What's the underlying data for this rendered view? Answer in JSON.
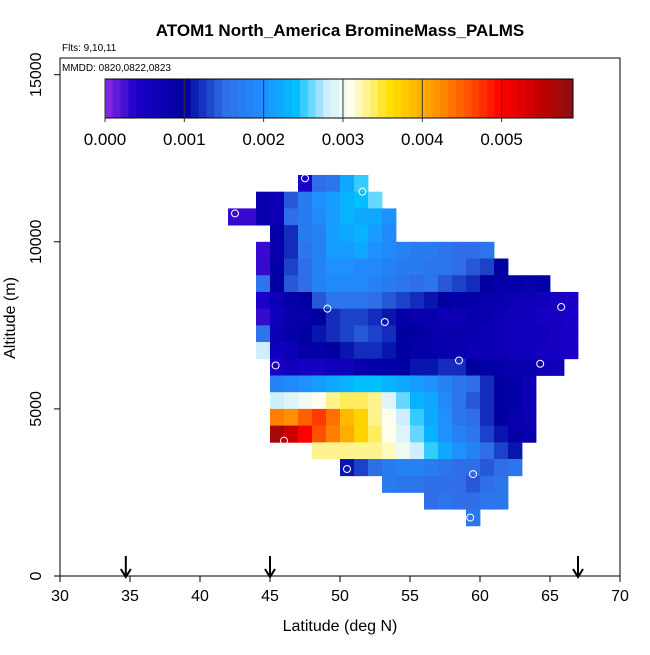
{
  "chart_data": {
    "type": "heatmap",
    "title": "ATOM1 North_America BromineMass_PALMS",
    "annotations": [
      "Flts: 9,10,11",
      "MMDD: 0820,0822,0823"
    ],
    "xlabel": "Latitude (deg N)",
    "ylabel": "Altitude (m)",
    "xlim": [
      30,
      70
    ],
    "ylim": [
      0,
      15500
    ],
    "x_ticks": [
      30,
      35,
      40,
      45,
      50,
      55,
      60,
      65,
      70
    ],
    "y_ticks": [
      0,
      5000,
      10000,
      15000
    ],
    "grid": false,
    "colorbar": {
      "placement": "top-inside",
      "range": [
        0,
        0.0059
      ],
      "ticks": [
        0.0,
        0.001,
        0.002,
        0.003,
        0.004,
        0.005
      ],
      "tick_labels": [
        "0.000",
        "0.001",
        "0.002",
        "0.003",
        "0.004",
        "0.005"
      ],
      "stops": [
        {
          "v": 0.0,
          "c": "#8a2be2"
        },
        {
          "v": 0.0004,
          "c": "#1a00c8"
        },
        {
          "v": 0.001,
          "c": "#0000a0"
        },
        {
          "v": 0.0015,
          "c": "#2f6ee6"
        },
        {
          "v": 0.002,
          "c": "#1e90ff"
        },
        {
          "v": 0.0024,
          "c": "#00bfff"
        },
        {
          "v": 0.0028,
          "c": "#cfefff"
        },
        {
          "v": 0.0031,
          "c": "#ffffee"
        },
        {
          "v": 0.0036,
          "c": "#ffe000"
        },
        {
          "v": 0.0041,
          "c": "#ffa000"
        },
        {
          "v": 0.0046,
          "c": "#ff5000"
        },
        {
          "v": 0.005,
          "c": "#ff0000"
        },
        {
          "v": 0.0055,
          "c": "#c00000"
        },
        {
          "v": 0.0059,
          "c": "#8b1010"
        }
      ]
    },
    "cell_size": {
      "lat": 1,
      "alt": 500
    },
    "cells": [
      {
        "lat_start": 47,
        "alt_start": 11500,
        "values": [
          0.0004,
          0.0015,
          0.0016,
          0.0022,
          0.0025
        ]
      },
      {
        "lat_start": 44,
        "alt_start": 11000,
        "values": [
          0.0008,
          0.0007,
          0.0014,
          0.0017,
          0.002,
          0.0021,
          0.0023,
          0.0024,
          0.0026
        ]
      },
      {
        "lat_start": 42,
        "alt_start": 10500,
        "values": [
          0.0003,
          0.0003,
          0.0008,
          0.0007,
          0.0015,
          0.0017,
          0.0019,
          0.0021,
          0.0023,
          0.0022,
          0.0022,
          0.002
        ]
      },
      {
        "lat_start": 45,
        "alt_start": 10000,
        "values": [
          0.0009,
          0.0012,
          0.0017,
          0.0018,
          0.0021,
          0.0022,
          0.0023,
          0.0021,
          0.0019
        ]
      },
      {
        "lat_start": 44,
        "alt_start": 9500,
        "values": [
          0.0003,
          0.0008,
          0.0012,
          0.0016,
          0.0018,
          0.0021,
          0.0021,
          0.0022,
          0.002,
          0.0019,
          0.0018,
          0.0017,
          0.0017,
          0.0016,
          0.0015,
          0.0015,
          0.0016
        ]
      },
      {
        "lat_start": 44,
        "alt_start": 9000,
        "values": [
          0.0003,
          0.0009,
          0.0013,
          0.0015,
          0.0018,
          0.002,
          0.002,
          0.0019,
          0.0019,
          0.0018,
          0.0017,
          0.0017,
          0.0016,
          0.0016,
          0.0015,
          0.0014,
          0.0013,
          0.001
        ]
      },
      {
        "lat_start": 44,
        "alt_start": 8500,
        "values": [
          0.0016,
          0.001,
          0.0014,
          0.0015,
          0.0018,
          0.0019,
          0.0019,
          0.0019,
          0.0018,
          0.0017,
          0.0016,
          0.0015,
          0.0016,
          0.0014,
          0.0013,
          0.0012,
          0.001,
          0.0009,
          0.0009,
          0.0008,
          0.0009
        ]
      },
      {
        "lat_start": 44,
        "alt_start": 8000,
        "values": [
          0.0004,
          0.0007,
          0.0009,
          0.001,
          0.0014,
          0.0016,
          0.0016,
          0.0016,
          0.0015,
          0.0014,
          0.0013,
          0.0012,
          0.0011,
          0.001,
          0.0009,
          0.0009,
          0.0008,
          0.0008,
          0.0007,
          0.0007,
          0.0006,
          0.0005,
          0.0004
        ]
      },
      {
        "lat_start": 44,
        "alt_start": 7500,
        "values": [
          0.0003,
          0.0006,
          0.0008,
          0.0009,
          0.001,
          0.0012,
          0.0013,
          0.0013,
          0.0012,
          0.0011,
          0.0009,
          0.0008,
          0.0008,
          0.0007,
          0.0007,
          0.0008,
          0.0008,
          0.0007,
          0.0006,
          0.0006,
          0.0005,
          0.0005,
          0.0004
        ]
      },
      {
        "lat_start": 44,
        "alt_start": 7000,
        "values": [
          0.0016,
          0.0007,
          0.0009,
          0.001,
          0.0011,
          0.0012,
          0.0013,
          0.0014,
          0.0013,
          0.0012,
          0.001,
          0.001,
          0.0009,
          0.0008,
          0.0008,
          0.0008,
          0.0007,
          0.0007,
          0.0006,
          0.0006,
          0.0006,
          0.0005,
          0.0004
        ]
      },
      {
        "lat_start": 44,
        "alt_start": 6500,
        "values": [
          0.0028,
          0.0006,
          0.0007,
          0.0009,
          0.0009,
          0.001,
          0.0011,
          0.0012,
          0.0012,
          0.0011,
          0.001,
          0.0009,
          0.0009,
          0.0008,
          0.0008,
          0.0007,
          0.0007,
          0.0007,
          0.0006,
          0.0006,
          0.0005,
          0.0005,
          0.0004
        ]
      },
      {
        "lat_start": 45,
        "alt_start": 6000,
        "values": [
          0.0004,
          0.0006,
          0.0005,
          0.0005,
          0.0006,
          0.0006,
          0.0008,
          0.0009,
          0.0009,
          0.001,
          0.0011,
          0.0011,
          0.0012,
          0.0012,
          0.001,
          0.0009,
          0.0009,
          0.0008,
          0.0008,
          0.0007,
          0.0006
        ]
      },
      {
        "lat_start": 45,
        "alt_start": 5500,
        "values": [
          0.0018,
          0.0019,
          0.002,
          0.0021,
          0.0022,
          0.0023,
          0.0024,
          0.0024,
          0.0023,
          0.0022,
          0.0021,
          0.002,
          0.0018,
          0.0016,
          0.0015,
          0.0012,
          0.001,
          0.0009,
          0.0007
        ]
      },
      {
        "lat_start": 45,
        "alt_start": 5000,
        "values": [
          0.0028,
          0.0029,
          0.003,
          0.0031,
          0.0033,
          0.0034,
          0.0034,
          0.0033,
          0.0029,
          0.0026,
          0.0023,
          0.0022,
          0.0019,
          0.0016,
          0.0014,
          0.0012,
          0.001,
          0.0009,
          0.0007
        ]
      },
      {
        "lat_start": 45,
        "alt_start": 4500,
        "values": [
          0.0043,
          0.0042,
          0.0045,
          0.0047,
          0.0044,
          0.0039,
          0.0037,
          0.0033,
          0.0031,
          0.0028,
          0.0025,
          0.0022,
          0.002,
          0.0016,
          0.0015,
          0.0012,
          0.001,
          0.0008,
          0.0007
        ]
      },
      {
        "lat_start": 45,
        "alt_start": 4000,
        "values": [
          0.0057,
          0.0054,
          0.005,
          0.0046,
          0.0043,
          0.004,
          0.0037,
          0.0034,
          0.0031,
          0.0029,
          0.0026,
          0.0023,
          0.002,
          0.0018,
          0.0016,
          0.0013,
          0.0011,
          0.0009,
          0.0008
        ]
      },
      {
        "lat_start": 48,
        "alt_start": 3500,
        "values": [
          0.0033,
          0.0033,
          0.0033,
          0.0033,
          0.0033,
          0.0032,
          0.003,
          0.0028,
          0.0025,
          0.0022,
          0.002,
          0.0018,
          0.0015,
          0.0013,
          0.0011
        ]
      },
      {
        "lat_start": 50,
        "alt_start": 3000,
        "values": [
          0.0011,
          0.0013,
          0.0015,
          0.0017,
          0.0018,
          0.0018,
          0.0017,
          0.0016,
          0.0015,
          0.0015,
          0.0014,
          0.0015,
          0.0016
        ]
      },
      {
        "lat_start": 53,
        "alt_start": 2500,
        "values": [
          0.0017,
          0.0016,
          0.0016,
          0.0015,
          0.0015,
          0.0015,
          0.0014,
          0.0015,
          0.0016
        ]
      },
      {
        "lat_start": 56,
        "alt_start": 2000,
        "values": [
          0.0015,
          0.0016,
          0.0015,
          0.0015,
          0.0016,
          0.0016
        ]
      },
      {
        "lat_start": 59,
        "alt_start": 1500,
        "values": [
          0.0016
        ]
      }
    ],
    "flight_markers": [
      {
        "lat": 47.5,
        "alt": 11900
      },
      {
        "lat": 51.6,
        "alt": 11500
      },
      {
        "lat": 42.5,
        "alt": 10850
      },
      {
        "lat": 49.1,
        "alt": 8000
      },
      {
        "lat": 53.2,
        "alt": 7600
      },
      {
        "lat": 65.8,
        "alt": 8050
      },
      {
        "lat": 45.4,
        "alt": 6300
      },
      {
        "lat": 58.5,
        "alt": 6450
      },
      {
        "lat": 64.3,
        "alt": 6350
      },
      {
        "lat": 46.0,
        "alt": 4050
      },
      {
        "lat": 50.5,
        "alt": 3200
      },
      {
        "lat": 59.5,
        "alt": 3050
      },
      {
        "lat": 59.3,
        "alt": 1750
      }
    ],
    "arrow_markers": [
      {
        "lat": 34.7
      },
      {
        "lat": 45.0
      },
      {
        "lat": 67.0
      }
    ]
  }
}
